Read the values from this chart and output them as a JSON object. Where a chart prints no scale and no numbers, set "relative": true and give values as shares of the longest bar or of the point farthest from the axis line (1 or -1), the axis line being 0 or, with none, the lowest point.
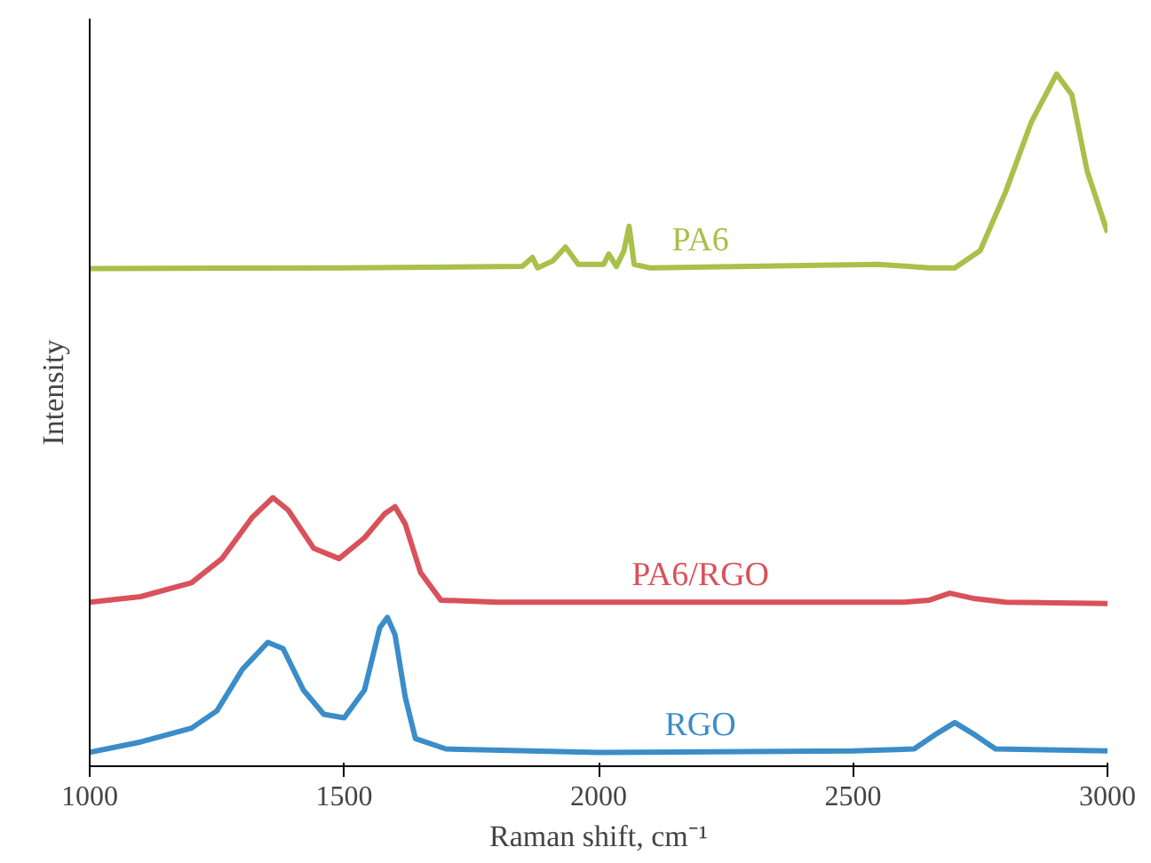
{
  "chart_data": {
    "type": "line",
    "xlabel": "Raman shift, cm⁻¹",
    "ylabel": "Intensity",
    "relative": true,
    "xlim": [
      1000,
      3000
    ],
    "xticks": [
      1000,
      1500,
      2000,
      2500,
      3000
    ],
    "tick_labels": "x",
    "grid": false,
    "legend": false,
    "marker": "none",
    "line_style": "solid",
    "series": [
      {
        "name": "PA6",
        "color": "#a9c04a",
        "x": [
          1000,
          1500,
          1850,
          1870,
          1880,
          1910,
          1935,
          1960,
          2010,
          2020,
          2035,
          2050,
          2060,
          2070,
          2100,
          2550,
          2650,
          2700,
          2750,
          2800,
          2850,
          2900,
          2930,
          2960,
          3000
        ],
        "values": [
          0.719,
          0.72,
          0.722,
          0.735,
          0.72,
          0.73,
          0.75,
          0.725,
          0.725,
          0.74,
          0.722,
          0.745,
          0.78,
          0.725,
          0.72,
          0.725,
          0.72,
          0.72,
          0.745,
          0.83,
          0.93,
          1.0,
          0.97,
          0.86,
          0.771
        ]
      },
      {
        "name": "PA6/RGO",
        "color": "#d9515a",
        "x": [
          1000,
          1100,
          1200,
          1260,
          1320,
          1360,
          1390,
          1440,
          1490,
          1540,
          1580,
          1600,
          1620,
          1650,
          1690,
          1800,
          2600,
          2650,
          2690,
          2740,
          2800,
          3000
        ],
        "values": [
          0.237,
          0.245,
          0.265,
          0.3,
          0.36,
          0.388,
          0.37,
          0.315,
          0.3,
          0.33,
          0.365,
          0.375,
          0.35,
          0.28,
          0.24,
          0.237,
          0.237,
          0.24,
          0.25,
          0.242,
          0.237,
          0.235
        ]
      },
      {
        "name": "RGO",
        "color": "#3a8dc8",
        "x": [
          1000,
          1100,
          1200,
          1250,
          1300,
          1350,
          1380,
          1420,
          1460,
          1500,
          1540,
          1570,
          1585,
          1600,
          1620,
          1640,
          1700,
          2000,
          2500,
          2620,
          2660,
          2700,
          2740,
          2780,
          3000
        ],
        "values": [
          0.02,
          0.035,
          0.055,
          0.08,
          0.14,
          0.179,
          0.17,
          0.11,
          0.075,
          0.07,
          0.11,
          0.2,
          0.215,
          0.19,
          0.1,
          0.04,
          0.025,
          0.02,
          0.022,
          0.025,
          0.045,
          0.063,
          0.045,
          0.025,
          0.022
        ]
      }
    ]
  }
}
